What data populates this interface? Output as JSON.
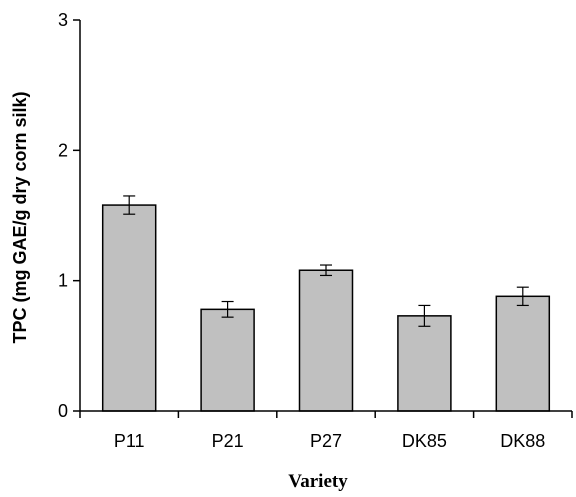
{
  "chart_data": {
    "type": "bar",
    "title": "",
    "xlabel": "Variety",
    "ylabel": "TPC (mg GAE/g dry corn silk)",
    "categories": [
      "P11",
      "P21",
      "P27",
      "DK85",
      "DK88"
    ],
    "values": [
      1.58,
      0.78,
      1.08,
      0.73,
      0.88
    ],
    "errors": [
      0.07,
      0.06,
      0.04,
      0.08,
      0.07
    ],
    "ylim": [
      0,
      3
    ],
    "yticks": [
      0,
      1,
      2,
      3
    ],
    "ytick_labels": [
      "0",
      "1",
      "2",
      "3"
    ],
    "grid": false,
    "legend": "none",
    "colors": {
      "bar_fill": "#c0c0c0",
      "bar_edge": "#000000"
    }
  }
}
